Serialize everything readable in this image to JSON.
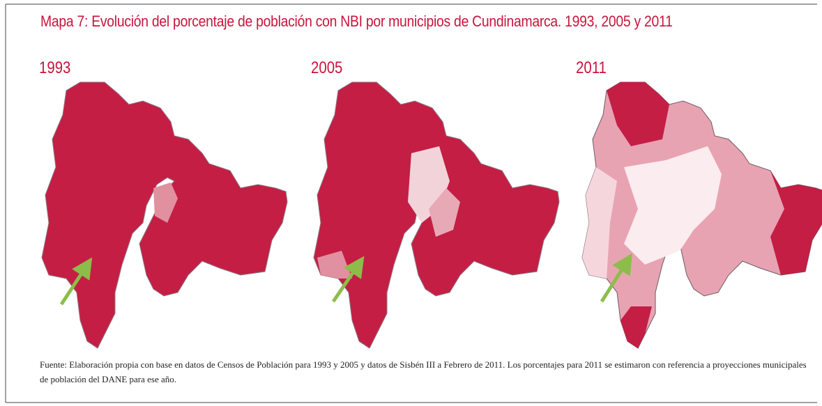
{
  "title": "Mapa 7: Evolución del porcentaje de población con NBI por municipios de Cundinamarca. 1993, 2005 y 2011",
  "maps": [
    {
      "year": "1993"
    },
    {
      "year": "2005"
    },
    {
      "year": "2011"
    }
  ],
  "source": "Fuente: Elaboración propia con base en datos de Censos de Población para 1993 y 2005 y datos de Sisbén III a Febrero de 2011. Los porcentajes para 2011 se estimaron con referencia a proyecciones municipales de población del DANE para ese año."
}
